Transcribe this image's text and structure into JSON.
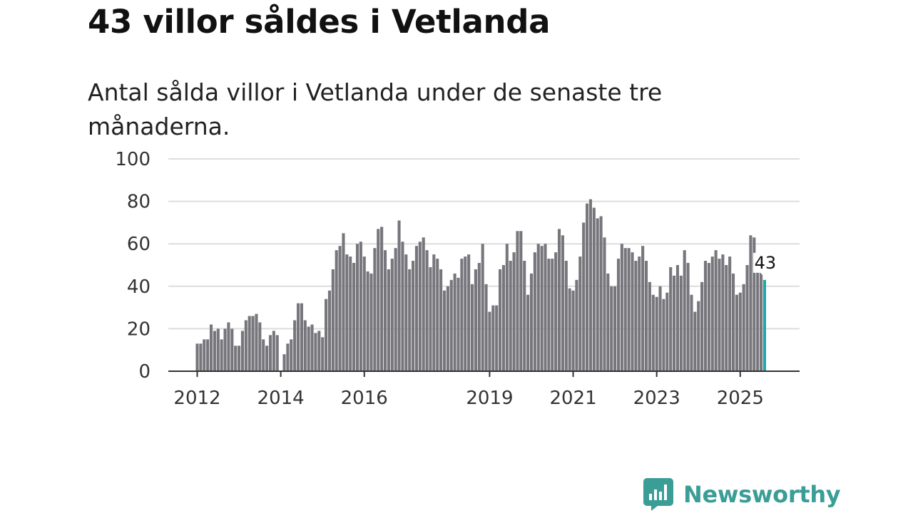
{
  "chart_data": {
    "type": "bar",
    "title": "43 villor såldes i Vetlanda",
    "subtitle": "Antal sålda villor i Vetlanda under de senaste tre månaderna.",
    "xlabel": "",
    "ylabel": "",
    "ylim": [
      0,
      100
    ],
    "yticks": [
      "0",
      "20",
      "40",
      "60",
      "80",
      "100"
    ],
    "xticks": [
      "2012",
      "2014",
      "2016",
      "2019",
      "2021",
      "2023",
      "2025"
    ],
    "grid": true,
    "bar_color": "#76767c",
    "highlight_color": "#1ba9a5",
    "highlight_label": "43",
    "start": "2012-01",
    "values": [
      13,
      13,
      15,
      15,
      22,
      19,
      20,
      15,
      20,
      23,
      20,
      12,
      12,
      19,
      24,
      26,
      26,
      27,
      23,
      15,
      12,
      17,
      19,
      17,
      null,
      8,
      13,
      15,
      24,
      32,
      32,
      24,
      21,
      22,
      18,
      19,
      16,
      34,
      38,
      48,
      57,
      59,
      65,
      55,
      54,
      51,
      60,
      61,
      54,
      47,
      46,
      58,
      67,
      68,
      57,
      48,
      53,
      58,
      71,
      61,
      55,
      48,
      52,
      59,
      61,
      63,
      57,
      49,
      55,
      53,
      48,
      38,
      40,
      43,
      46,
      44,
      53,
      54,
      55,
      41,
      48,
      51,
      60,
      41,
      28,
      31,
      31,
      48,
      50,
      60,
      52,
      56,
      66,
      66,
      52,
      36,
      46,
      56,
      60,
      59,
      60,
      53,
      53,
      56,
      67,
      64,
      52,
      39,
      38,
      43,
      54,
      70,
      79,
      81,
      77,
      72,
      73,
      63,
      46,
      40,
      40,
      53,
      60,
      58,
      58,
      56,
      52,
      54,
      59,
      52,
      42,
      36,
      35,
      40,
      34,
      37,
      49,
      45,
      50,
      45,
      57,
      51,
      36,
      28,
      33,
      42,
      52,
      51,
      54,
      57,
      53,
      55,
      50,
      54,
      46,
      36,
      37,
      41,
      50,
      64,
      63,
      48,
      47,
      43
    ]
  },
  "brand": {
    "name": "Newsworthy",
    "color": "#3a9e96"
  }
}
